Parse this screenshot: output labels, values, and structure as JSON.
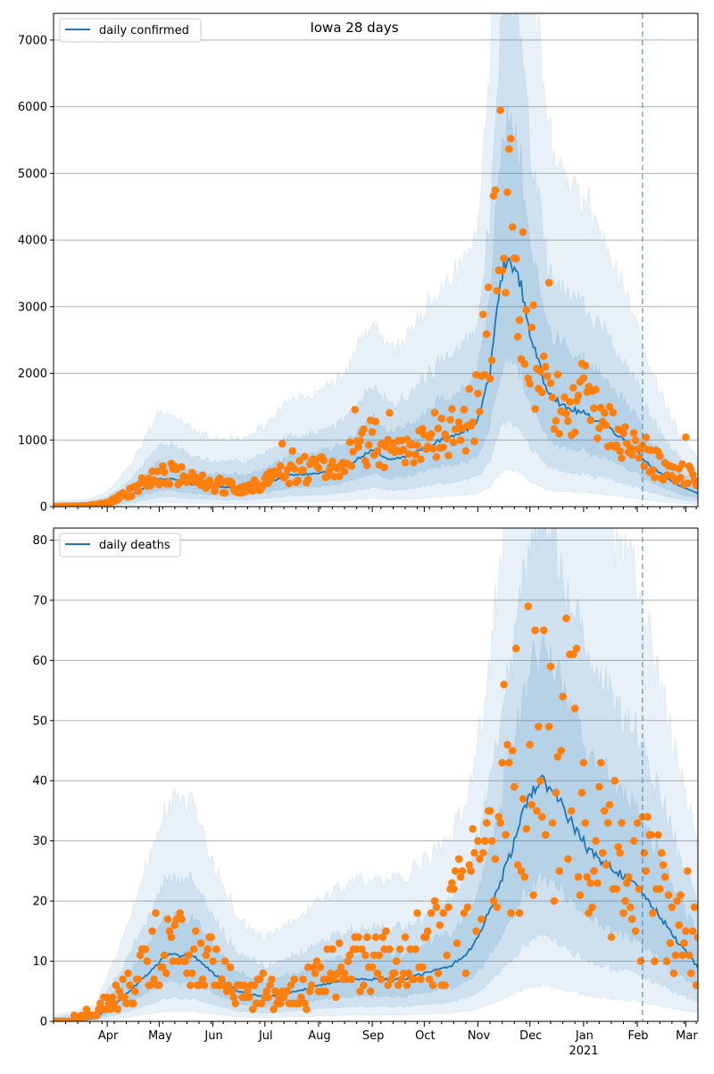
{
  "chart_data": [
    {
      "type": "line",
      "title": "Iowa 28 days",
      "legend": {
        "entries": [
          "daily confirmed"
        ],
        "placement": "top-left"
      },
      "grid": "horizontal",
      "ylim": [
        0,
        7400
      ],
      "yticks": [
        0,
        1000,
        2000,
        3000,
        4000,
        5000,
        6000,
        7000
      ],
      "xlim": [
        "2020-03-01",
        "2021-03-08"
      ],
      "forecast_start": "2021-02-04",
      "median_keypoints": [
        [
          "2020-03-01",
          0
        ],
        [
          "2020-03-20",
          5
        ],
        [
          "2020-04-01",
          40
        ],
        [
          "2020-04-15",
          170
        ],
        [
          "2020-05-01",
          420
        ],
        [
          "2020-05-10",
          410
        ],
        [
          "2020-05-20",
          330
        ],
        [
          "2020-06-01",
          300
        ],
        [
          "2020-06-20",
          290
        ],
        [
          "2020-07-01",
          350
        ],
        [
          "2020-07-15",
          470
        ],
        [
          "2020-08-01",
          500
        ],
        [
          "2020-08-15",
          580
        ],
        [
          "2020-09-01",
          850
        ],
        [
          "2020-09-10",
          700
        ],
        [
          "2020-09-20",
          750
        ],
        [
          "2020-10-01",
          880
        ],
        [
          "2020-10-15",
          1050
        ],
        [
          "2020-10-25",
          1150
        ],
        [
          "2020-11-01",
          1300
        ],
        [
          "2020-11-08",
          2000
        ],
        [
          "2020-11-12",
          3000
        ],
        [
          "2020-11-16",
          3600
        ],
        [
          "2020-11-20",
          3700
        ],
        [
          "2020-11-26",
          3300
        ],
        [
          "2020-12-01",
          2600
        ],
        [
          "2020-12-10",
          1800
        ],
        [
          "2020-12-20",
          1500
        ],
        [
          "2021-01-01",
          1400
        ],
        [
          "2021-01-15",
          1200
        ],
        [
          "2021-02-01",
          850
        ],
        [
          "2021-02-05",
          700
        ],
        [
          "2021-02-15",
          480
        ],
        [
          "2021-02-25",
          320
        ],
        [
          "2021-03-08",
          200
        ]
      ],
      "observed_keypoints": [
        [
          "2020-03-01",
          0
        ],
        [
          "2020-03-20",
          10
        ],
        [
          "2020-04-01",
          50
        ],
        [
          "2020-04-15",
          220
        ],
        [
          "2020-05-01",
          450
        ],
        [
          "2020-05-10",
          520
        ],
        [
          "2020-05-20",
          380
        ],
        [
          "2020-06-01",
          330
        ],
        [
          "2020-06-20",
          290
        ],
        [
          "2020-07-01",
          380
        ],
        [
          "2020-07-15",
          520
        ],
        [
          "2020-08-01",
          560
        ],
        [
          "2020-08-15",
          640
        ],
        [
          "2020-09-01",
          1000
        ],
        [
          "2020-09-10",
          760
        ],
        [
          "2020-09-20",
          800
        ],
        [
          "2020-10-01",
          980
        ],
        [
          "2020-10-15",
          1150
        ],
        [
          "2020-10-25",
          1250
        ],
        [
          "2020-11-01",
          1550
        ],
        [
          "2020-11-08",
          2700
        ],
        [
          "2020-11-12",
          4400
        ],
        [
          "2020-11-16",
          4700
        ],
        [
          "2020-11-20",
          4100
        ],
        [
          "2020-11-26",
          3400
        ],
        [
          "2020-12-01",
          2500
        ],
        [
          "2020-12-10",
          1700
        ],
        [
          "2020-12-20",
          1500
        ],
        [
          "2021-01-01",
          1600
        ],
        [
          "2021-01-15",
          1300
        ],
        [
          "2021-02-01",
          900
        ],
        [
          "2021-02-05",
          700
        ],
        [
          "2021-02-15",
          600
        ],
        [
          "2021-02-25",
          560
        ],
        [
          "2021-03-08",
          400
        ]
      ],
      "observed_noise_fraction": 0.35
    },
    {
      "type": "line",
      "title": "",
      "legend": {
        "entries": [
          "daily deaths"
        ],
        "placement": "top-left"
      },
      "grid": "horizontal",
      "ylim": [
        0,
        82
      ],
      "yticks": [
        0,
        10,
        20,
        30,
        40,
        50,
        60,
        70,
        80
      ],
      "xlim": [
        "2020-03-01",
        "2021-03-08"
      ],
      "forecast_start": "2021-02-04",
      "xtick_labels": [
        "Apr",
        "May",
        "Jun",
        "Jul",
        "Aug",
        "Sep",
        "Oct",
        "Nov",
        "Dec",
        "Jan",
        "Feb",
        "Mar"
      ],
      "xtick_dates": [
        "2020-04-01",
        "2020-05-01",
        "2020-06-01",
        "2020-07-01",
        "2020-08-01",
        "2020-09-01",
        "2020-10-01",
        "2020-11-01",
        "2020-12-01",
        "2021-01-01",
        "2021-02-01",
        "2021-03-01"
      ],
      "year_label": "2021",
      "median_keypoints": [
        [
          "2020-03-01",
          0
        ],
        [
          "2020-03-25",
          0.5
        ],
        [
          "2020-04-10",
          4
        ],
        [
          "2020-04-25",
          8
        ],
        [
          "2020-05-05",
          11
        ],
        [
          "2020-05-20",
          11
        ],
        [
          "2020-06-01",
          8
        ],
        [
          "2020-06-15",
          5
        ],
        [
          "2020-07-01",
          4
        ],
        [
          "2020-07-20",
          5
        ],
        [
          "2020-08-01",
          6
        ],
        [
          "2020-08-20",
          7
        ],
        [
          "2020-09-01",
          7
        ],
        [
          "2020-09-20",
          7
        ],
        [
          "2020-10-01",
          8
        ],
        [
          "2020-10-15",
          9
        ],
        [
          "2020-10-25",
          11
        ],
        [
          "2020-11-01",
          14
        ],
        [
          "2020-11-10",
          20
        ],
        [
          "2020-11-20",
          28
        ],
        [
          "2020-12-01",
          38
        ],
        [
          "2020-12-08",
          40
        ],
        [
          "2020-12-15",
          38
        ],
        [
          "2020-12-25",
          33
        ],
        [
          "2021-01-05",
          28
        ],
        [
          "2021-01-15",
          26
        ],
        [
          "2021-01-25",
          24
        ],
        [
          "2021-02-05",
          21
        ],
        [
          "2021-02-15",
          17
        ],
        [
          "2021-02-25",
          13
        ],
        [
          "2021-03-08",
          9
        ]
      ],
      "observed_keypoints": [
        [
          "2020-03-01",
          0
        ],
        [
          "2020-03-25",
          1
        ],
        [
          "2020-04-10",
          5
        ],
        [
          "2020-04-25",
          9
        ],
        [
          "2020-05-05",
          12
        ],
        [
          "2020-05-20",
          12
        ],
        [
          "2020-06-01",
          9
        ],
        [
          "2020-06-15",
          6
        ],
        [
          "2020-07-01",
          4
        ],
        [
          "2020-07-20",
          5
        ],
        [
          "2020-08-01",
          7
        ],
        [
          "2020-08-20",
          9
        ],
        [
          "2020-09-01",
          9
        ],
        [
          "2020-09-20",
          10
        ],
        [
          "2020-10-01",
          11
        ],
        [
          "2020-10-15",
          15
        ],
        [
          "2020-10-25",
          20
        ],
        [
          "2020-11-01",
          24
        ],
        [
          "2020-11-10",
          30
        ],
        [
          "2020-11-20",
          38
        ],
        [
          "2020-12-01",
          45
        ],
        [
          "2020-12-08",
          48
        ],
        [
          "2020-12-15",
          48
        ],
        [
          "2020-12-25",
          40
        ],
        [
          "2021-01-05",
          35
        ],
        [
          "2021-01-15",
          28
        ],
        [
          "2021-01-25",
          22
        ],
        [
          "2021-02-05",
          22
        ],
        [
          "2021-02-15",
          20
        ],
        [
          "2021-02-25",
          16
        ],
        [
          "2021-03-08",
          12
        ]
      ],
      "observed_noise_fraction": 0.6
    }
  ],
  "colors": {
    "median_line": "#1f77b4",
    "observed_points": "#ff7f0e",
    "band": "#1f77b4",
    "grid": "#b0b0b0",
    "axis": "#000000",
    "forecast_marker": "#1f77b4"
  }
}
